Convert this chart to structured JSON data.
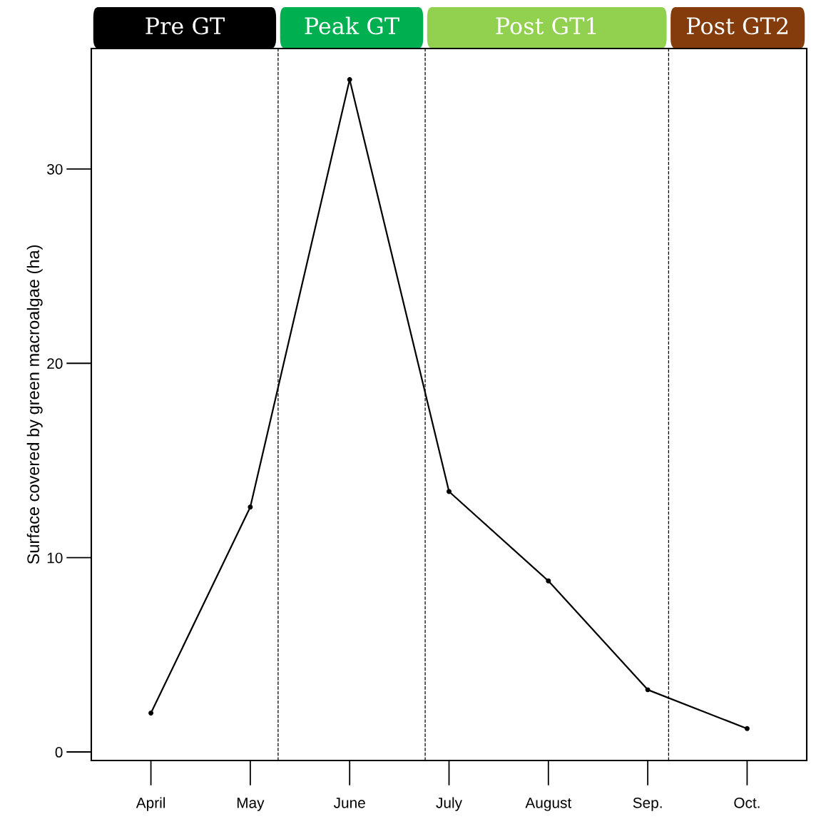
{
  "chart_data": {
    "type": "line",
    "ylabel": "Surface covered by green macroalgae (ha)",
    "categories": [
      "April",
      "May",
      "June",
      "July",
      "August",
      "Sep.",
      "Oct."
    ],
    "series": [
      {
        "color": "#000000",
        "values": [
          2.0,
          12.6,
          34.6,
          13.4,
          8.8,
          3.2,
          1.2
        ]
      }
    ],
    "marker": "circle",
    "line_style": "solid",
    "grid": false,
    "legend": false,
    "ylim": [
      -0.44,
      36.2
    ],
    "yticks": [
      0,
      10,
      20,
      30
    ],
    "annotations": [
      "Pre GT",
      "Peak GT",
      "Post GT1",
      "Post GT2"
    ]
  }
}
